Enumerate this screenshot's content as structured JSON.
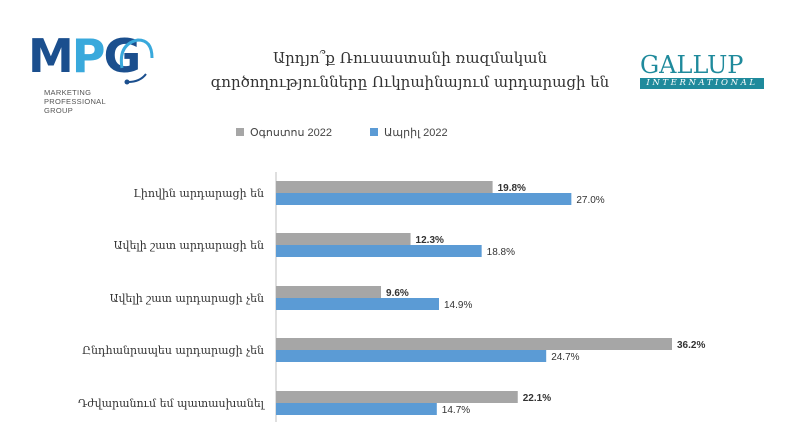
{
  "logo_left": {
    "letters": "MPG",
    "lines": [
      "MARKETING",
      "PROFESSIONAL",
      "GROUP"
    ]
  },
  "logo_right": {
    "word": "GALLUP",
    "band": "INTERNATIONAL"
  },
  "colors": {
    "series_aug": "#a6a6a6",
    "series_apr": "#5b9bd5",
    "mpg_dark": "#1b4f8e",
    "mpg_light": "#39a9dc",
    "gallup": "#1f8a9c"
  },
  "chart_data": {
    "type": "bar",
    "orientation": "horizontal",
    "title": "Արդյո՞ք Ռուսաստանի ռազմական գործողությունները Ուկրաինայում արդարացի են",
    "title_lines": [
      "Արդյո՞ք Ռուսաստանի ռազմական",
      "գործողությունները Ուկրաինայում արդարացի են"
    ],
    "categories": [
      "Լիովին արդարացի են",
      "Ավելի շատ արդարացի են",
      "Ավելի շատ արդարացի չեն",
      "Ընդհանրապես արդարացի չեն",
      "Դժվարանում եմ պատասխանել"
    ],
    "series": [
      {
        "name": "Օգոստոս 2022",
        "values": [
          19.8,
          12.3,
          9.6,
          36.2,
          22.1
        ],
        "labels": [
          "19.8%",
          "12.3%",
          "9.6%",
          "36.2%",
          "22.1%"
        ]
      },
      {
        "name": "Ապրիլ 2022",
        "values": [
          27.0,
          18.8,
          14.9,
          24.7,
          14.7
        ],
        "labels": [
          "27.0%",
          "18.8%",
          "14.9%",
          "24.7%",
          "14.7%"
        ]
      }
    ],
    "xlim": [
      0,
      40
    ],
    "legend_position": "top",
    "grid": false
  }
}
